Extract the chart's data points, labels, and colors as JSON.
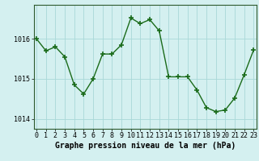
{
  "x": [
    0,
    1,
    2,
    3,
    4,
    5,
    6,
    7,
    8,
    9,
    10,
    11,
    12,
    13,
    14,
    15,
    16,
    17,
    18,
    19,
    20,
    21,
    22,
    23
  ],
  "y": [
    1016.0,
    1015.7,
    1015.8,
    1015.55,
    1014.85,
    1014.62,
    1015.0,
    1015.62,
    1015.62,
    1015.85,
    1016.52,
    1016.38,
    1016.48,
    1016.2,
    1015.05,
    1015.05,
    1015.05,
    1014.72,
    1014.28,
    1014.18,
    1014.22,
    1014.52,
    1015.1,
    1015.72
  ],
  "line_color": "#1a6b1a",
  "marker": "+",
  "marker_size": 4,
  "marker_lw": 1.2,
  "bg_color": "#d4f0f0",
  "grid_color": "#a8d8d8",
  "xlabel": "Graphe pression niveau de la mer (hPa)",
  "xlabel_fontsize": 7.0,
  "ylabel_ticks": [
    1014,
    1015,
    1016
  ],
  "ylim": [
    1013.75,
    1016.85
  ],
  "xlim": [
    -0.3,
    23.3
  ],
  "tick_fontsize": 6.0,
  "line_width": 1.0,
  "border_color": "#2d5a2d",
  "spine_lw": 0.8
}
